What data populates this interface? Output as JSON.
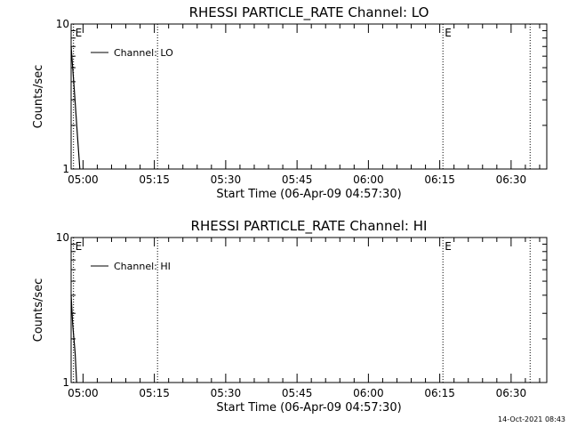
{
  "footer_timestamp": "14-Oct-2021 08:43",
  "chart_data": [
    {
      "type": "line",
      "title": "RHESSI PARTICLE_RATE Channel: LO",
      "xlabel": "Start Time (06-Apr-09 04:57:30)",
      "ylabel": "Counts/sec",
      "y_scale": "log",
      "ylim": [
        1,
        10
      ],
      "xlim": [
        "04:57:30",
        "06:37:30"
      ],
      "xticks": [
        "05:00",
        "05:15",
        "05:30",
        "05:45",
        "06:00",
        "06:15",
        "06:30"
      ],
      "yticks": [
        "1",
        "10"
      ],
      "legend": {
        "placement": "top-left",
        "entries": [
          "Channel: LO"
        ]
      },
      "markers": [
        {
          "time": "04:58:00",
          "label": "E",
          "style": "dotted"
        },
        {
          "time": "05:15:40",
          "label": "",
          "style": "dotted"
        },
        {
          "time": "06:15:40",
          "label": "E",
          "style": "dotted"
        },
        {
          "time": "06:34:00",
          "label": "",
          "style": "dotted"
        }
      ],
      "series": [
        {
          "name": "Channel: LO",
          "points": [
            [
              "04:57:30",
              7.0
            ],
            [
              "04:58:10",
              3.5
            ],
            [
              "04:58:50",
              1.7
            ],
            [
              "04:59:20",
              1.0
            ]
          ]
        }
      ]
    },
    {
      "type": "line",
      "title": "RHESSI PARTICLE_RATE Channel: HI",
      "xlabel": "Start Time (06-Apr-09 04:57:30)",
      "ylabel": "Counts/sec",
      "y_scale": "log",
      "ylim": [
        1,
        10
      ],
      "xlim": [
        "04:57:30",
        "06:37:30"
      ],
      "xticks": [
        "05:00",
        "05:15",
        "05:30",
        "05:45",
        "06:00",
        "06:15",
        "06:30"
      ],
      "yticks": [
        "1",
        "10"
      ],
      "legend": {
        "placement": "top-left",
        "entries": [
          "Channel: HI"
        ]
      },
      "markers": [
        {
          "time": "04:58:00",
          "label": "E",
          "style": "dotted"
        },
        {
          "time": "05:15:40",
          "label": "",
          "style": "dotted"
        },
        {
          "time": "06:15:40",
          "label": "E",
          "style": "dotted"
        },
        {
          "time": "06:34:00",
          "label": "",
          "style": "dotted"
        }
      ],
      "series": [
        {
          "name": "Channel: HI",
          "points": [
            [
              "04:57:30",
              4.0
            ],
            [
              "04:57:50",
              2.5
            ],
            [
              "04:58:20",
              1.6
            ],
            [
              "04:58:40",
              1.0
            ]
          ]
        }
      ]
    }
  ]
}
